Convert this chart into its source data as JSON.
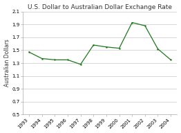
{
  "title": "U.S. Dollar to Australian Dollar Exchange Rate",
  "ylabel": "Australian Dollars",
  "xlabel": "",
  "years": [
    1993,
    1994,
    1995,
    1996,
    1997,
    1998,
    1999,
    2000,
    2001,
    2002,
    2003,
    2004
  ],
  "values": [
    1.47,
    1.37,
    1.35,
    1.35,
    1.28,
    1.58,
    1.55,
    1.53,
    1.93,
    1.88,
    1.52,
    1.35
  ],
  "line_color": "#1a7a1a",
  "ylim": [
    0.5,
    2.1
  ],
  "yticks": [
    0.5,
    0.7,
    0.9,
    1.1,
    1.3,
    1.5,
    1.7,
    1.9,
    2.1
  ],
  "background_color": "#ffffff",
  "plot_bg_color": "#ffffff",
  "title_fontsize": 6.5,
  "label_fontsize": 5.5,
  "tick_fontsize": 5.0,
  "grid_color": "#d0d0d0",
  "spine_color": "#aaaaaa"
}
